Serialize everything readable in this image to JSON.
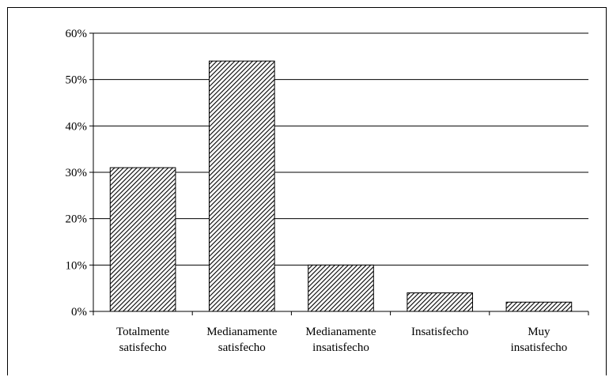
{
  "chart_data": {
    "type": "bar",
    "title": "",
    "xlabel": "",
    "ylabel": "",
    "categories": [
      [
        "Totalmente",
        "satisfecho"
      ],
      [
        "Medianamente",
        "satisfecho"
      ],
      [
        "Medianamente",
        "insatisfecho"
      ],
      [
        "Insatisfecho"
      ],
      [
        "Muy",
        "insatisfecho"
      ]
    ],
    "values": [
      31,
      54,
      10,
      4,
      2
    ],
    "ylim": [
      0,
      60
    ],
    "yticks": [
      0,
      10,
      20,
      30,
      40,
      50,
      60
    ],
    "ytick_labels": [
      "0%",
      "10%",
      "20%",
      "30%",
      "40%",
      "50%",
      "60%"
    ],
    "grid": true,
    "legend": "none",
    "bar_fill": "hatched",
    "bar_color": "#000000"
  }
}
